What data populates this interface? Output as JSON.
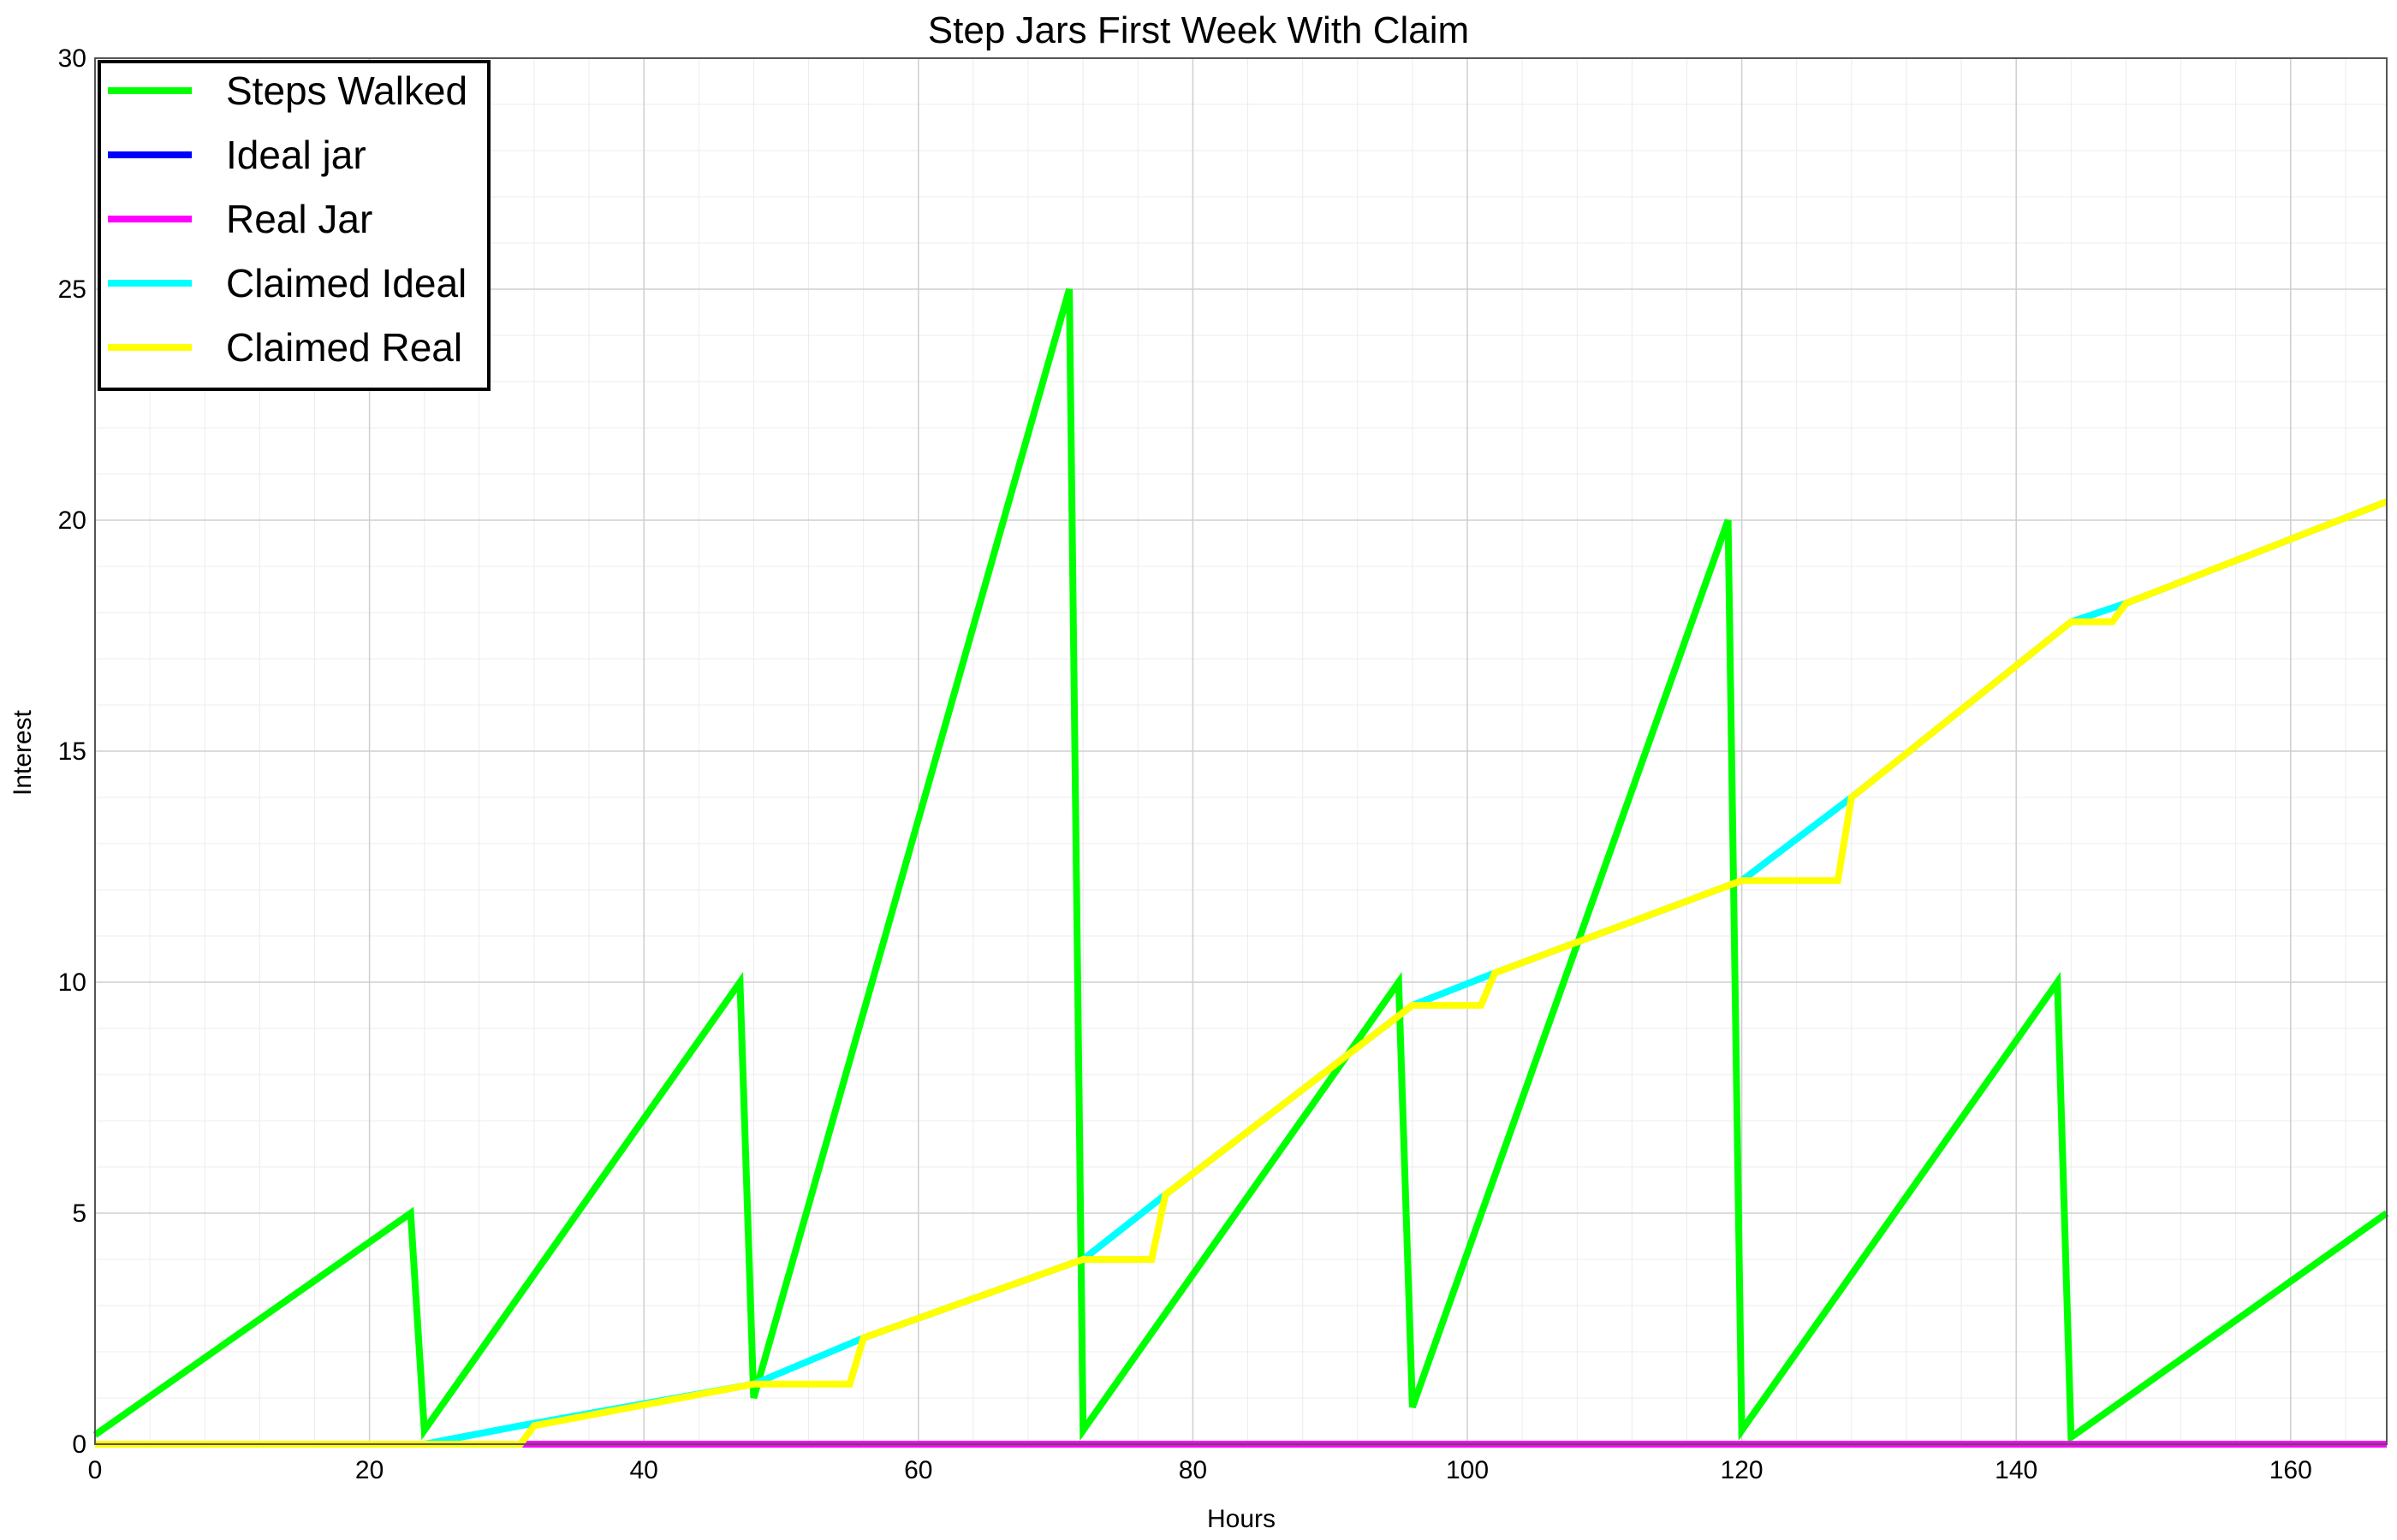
{
  "chart_data": {
    "type": "line",
    "title": "Step Jars First Week With Claim",
    "xlabel": "Hours",
    "ylabel": "Interest",
    "xlim": [
      0,
      167
    ],
    "ylim": [
      0,
      30
    ],
    "xticks": [
      0,
      20,
      40,
      60,
      80,
      100,
      120,
      140,
      160
    ],
    "yticks": [
      0,
      5,
      10,
      15,
      20,
      25,
      30
    ],
    "grid": true,
    "legend_position": "top-left",
    "series": [
      {
        "name": "Steps Walked",
        "color": "#00ff00",
        "points": [
          [
            0,
            0.2
          ],
          [
            23,
            5
          ],
          [
            24,
            0.3
          ],
          [
            47,
            10
          ],
          [
            48,
            1.0
          ],
          [
            71,
            25
          ],
          [
            72,
            0.3
          ],
          [
            95,
            10
          ],
          [
            96,
            0.8
          ],
          [
            119,
            20
          ],
          [
            120,
            0.3
          ],
          [
            143,
            10
          ],
          [
            144,
            0.15
          ],
          [
            167,
            5
          ]
        ]
      },
      {
        "name": "Ideal jar",
        "color": "#0000ff",
        "points": [
          [
            0,
            0
          ],
          [
            167,
            0
          ]
        ]
      },
      {
        "name": "Real Jar",
        "color": "#ff00ff",
        "points": [
          [
            0,
            0
          ],
          [
            167,
            0
          ]
        ]
      },
      {
        "name": "Claimed Ideal",
        "color": "#00ffff",
        "points": [
          [
            0,
            0
          ],
          [
            24,
            0
          ],
          [
            31,
            0.4
          ],
          [
            48,
            1.3
          ],
          [
            56,
            2.3
          ],
          [
            72,
            4.0
          ],
          [
            78,
            5.4
          ],
          [
            96,
            9.5
          ],
          [
            102,
            10.2
          ],
          [
            120,
            12.2
          ],
          [
            128,
            14.0
          ],
          [
            144,
            17.8
          ],
          [
            148,
            18.2
          ],
          [
            167,
            20.4
          ]
        ]
      },
      {
        "name": "Claimed Real",
        "color": "#ffff00",
        "points": [
          [
            0,
            0
          ],
          [
            31,
            0
          ],
          [
            32,
            0.4
          ],
          [
            48,
            1.3
          ],
          [
            55,
            1.3
          ],
          [
            56,
            2.3
          ],
          [
            72,
            4.0
          ],
          [
            77,
            4.0
          ],
          [
            78,
            5.4
          ],
          [
            96,
            9.5
          ],
          [
            101,
            9.5
          ],
          [
            102,
            10.2
          ],
          [
            120,
            12.2
          ],
          [
            127,
            12.2
          ],
          [
            128,
            14.0
          ],
          [
            144,
            17.8
          ],
          [
            147,
            17.8
          ],
          [
            148,
            18.2
          ],
          [
            167,
            20.4
          ]
        ]
      }
    ]
  }
}
